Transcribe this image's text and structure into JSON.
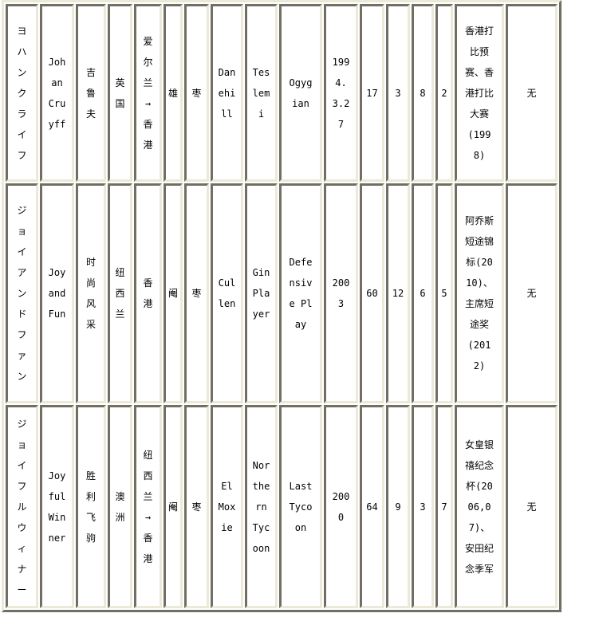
{
  "rows": [
    [
      "ヨハンクライフ",
      "Johan Cruyff",
      "吉鲁夫",
      "英国",
      "爱尔兰→香港",
      "雄",
      "枣",
      "Danehill",
      "Teslemi",
      "Ogygian",
      "1994.3.27",
      "17",
      "3",
      "8",
      "2",
      "香港打比预赛、香港打比大赛(1998)",
      "无"
    ],
    [
      "ジョイアンドファン",
      "Joy and Fun",
      "时尚风采",
      "纽西兰",
      "香港",
      "阉",
      "枣",
      "Cullen",
      "Gin Player",
      "Defensive Play",
      "2003",
      "60",
      "12",
      "6",
      "5",
      "阿乔斯短途锦标(2010)、主席短途奖(2012)",
      "无"
    ],
    [
      "ジョイフルウィナー",
      "Joyful Winner",
      "胜利飞驹",
      "澳洲",
      "纽西兰→香港",
      "阉",
      "枣",
      "El Moxie",
      "Northern Tycoon",
      "Last Tycoon",
      "2000",
      "64",
      "9",
      "3",
      "7",
      "女皇银禧纪念杯(2006,07)、安田纪念季军",
      "无"
    ]
  ],
  "colors": {
    "border_dark": "#716f64",
    "border_light": "#ece9d8",
    "cell_bg": "#ffffff"
  }
}
